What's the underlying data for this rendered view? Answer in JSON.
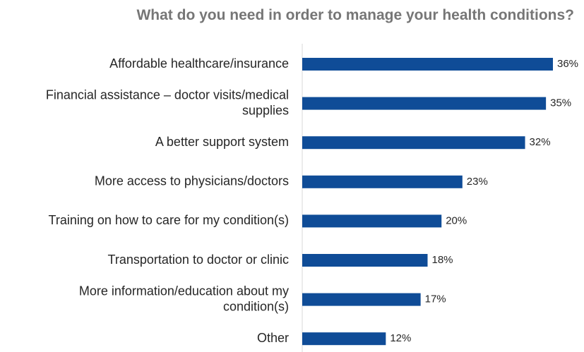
{
  "chart_data": {
    "type": "bar",
    "orientation": "horizontal",
    "title": "What do you need in order to manage your health conditions?",
    "xlabel": "",
    "ylabel": "",
    "categories": [
      [
        "Affordable healthcare/insurance"
      ],
      [
        "Financial assistance – doctor visits/medical",
        "supplies"
      ],
      [
        "A better support system"
      ],
      [
        "More access to physicians/doctors"
      ],
      [
        "Training on how to care for my condition(s)"
      ],
      [
        "Transportation to doctor or clinic"
      ],
      [
        "More information/education about my",
        "condition(s)"
      ],
      [
        "Other"
      ]
    ],
    "values": [
      36,
      35,
      32,
      23,
      20,
      18,
      17,
      12
    ],
    "value_labels": [
      "36%",
      "35%",
      "32%",
      "23%",
      "20%",
      "18%",
      "17%",
      "12%"
    ],
    "value_unit": "%",
    "xlim": [
      0,
      36
    ],
    "grid": false,
    "bar_color": "#0f4c97",
    "axis_color": "#d9d9d9"
  }
}
